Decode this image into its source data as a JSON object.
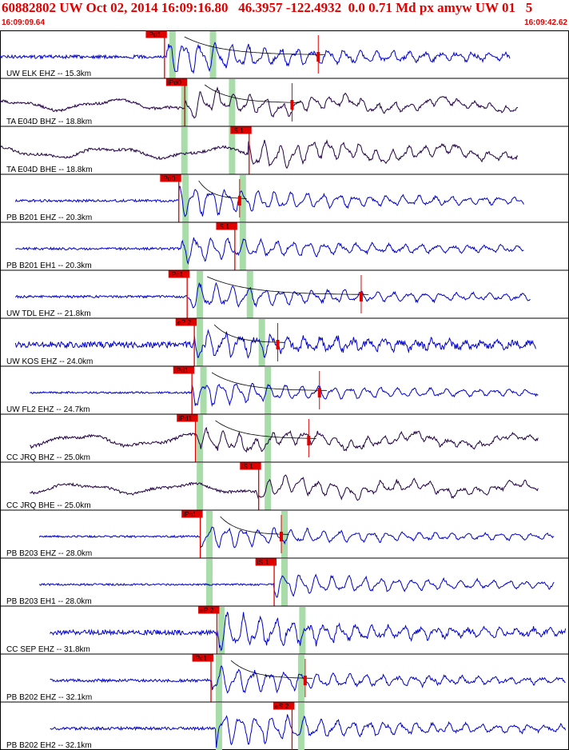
{
  "header": {
    "title": "60882802 UW Oct 02, 2014 16:09:16.80   46.3957 -122.4932  0.0 0.71 Md px amyw UW 01   5",
    "start_time": "16:09:09.64",
    "end_time": "16:09:42.62"
  },
  "colors": {
    "blue_trace": "#0000cc",
    "dark_trace": "#220044",
    "pick": "#e00000",
    "window": "#a8dca8",
    "coda": "#000000",
    "label": "#000000"
  },
  "chart_data": {
    "type": "line",
    "title": "60882802 UW Oct 02, 2014 16:09:16.80   46.3957 -122.4932  0.0 0.71 Md px amyw UW 01   5",
    "x_range": [
      "16:09:09.64",
      "16:09:42.62"
    ],
    "xlabel": "",
    "ylabel": "",
    "grid": false,
    "channels": [
      {
        "label": "UW ELK EHZ -- 15.3km",
        "pick": "iPd1",
        "pick_t": 13.8,
        "green": [
          14.2,
          17.6
        ],
        "coda_t": 26.7,
        "trace_start": 0.0,
        "trace_end": 42.8,
        "onset": 14.0,
        "peak_amp": 0.85,
        "bg_amp": 0.07,
        "color": "blue"
      },
      {
        "label": "TA E04D BHZ -- 18.8km",
        "pick": "iPd0",
        "pick_t": 15.5,
        "green": [
          15.2,
          19.2
        ],
        "coda_t": 24.5,
        "trace_start": 0.0,
        "trace_end": 43.5,
        "onset": 15.5,
        "peak_amp": 0.6,
        "bg_amp": 0.32,
        "color": "dark"
      },
      {
        "label": "TA E04D BHE -- 18.8km",
        "pick": "iS 1",
        "pick_t": 20.9,
        "green": [
          15.2,
          19.2
        ],
        "coda_t": 0,
        "trace_start": 0.0,
        "trace_end": 43.5,
        "onset": 20.8,
        "peak_amp": 0.65,
        "bg_amp": 0.32,
        "color": "dark"
      },
      {
        "label": "PB B201 EHZ -- 20.3km",
        "pick": "iPd0",
        "pick_t": 15.0,
        "green": [
          15.3,
          20.1
        ],
        "coda_t": 20.1,
        "trace_start": 1.3,
        "trace_end": 44.0,
        "onset": 15.0,
        "peak_amp": 0.75,
        "bg_amp": 0.05,
        "color": "blue"
      },
      {
        "label": "PB B201 EH1 -- 20.3km",
        "pick": "iS 1",
        "pick_t": 19.7,
        "green": [
          15.3,
          20.1
        ],
        "coda_t": 0,
        "trace_start": 1.3,
        "trace_end": 44.0,
        "onset": 15.2,
        "peak_amp": 0.6,
        "bg_amp": 0.05,
        "color": "blue"
      },
      {
        "label": "UW TDL EHZ -- 21.8km",
        "pick": "iPc1",
        "pick_t": 15.7,
        "green": [
          16.5,
          20.7
        ],
        "coda_t": 30.3,
        "trace_start": 1.3,
        "trace_end": 44.5,
        "onset": 15.6,
        "peak_amp": 0.6,
        "bg_amp": 0.05,
        "color": "blue"
      },
      {
        "label": "UW KOS EHZ -- 24.0km",
        "pick": "eP 2",
        "pick_t": 16.3,
        "green": [
          16.5,
          21.7
        ],
        "coda_t": 23.3,
        "trace_start": 1.3,
        "trace_end": 45.0,
        "onset": 16.3,
        "peak_amp": 0.65,
        "bg_amp": 0.13,
        "color": "blue"
      },
      {
        "label": "UW FL2 EHZ -- 24.7km",
        "pick": "iPd1",
        "pick_t": 16.1,
        "green": [
          16.8,
          22.2
        ],
        "coda_t": 26.8,
        "trace_start": 2.5,
        "trace_end": 45.2,
        "onset": 16.1,
        "peak_amp": 0.6,
        "bg_amp": 0.04,
        "color": "blue"
      },
      {
        "label": "CC JRQ BHZ -- 25.0km",
        "pick": "iPd1",
        "pick_t": 16.4,
        "green": [
          16.5,
          22.2
        ],
        "coda_t": 25.9,
        "trace_start": 2.5,
        "trace_end": 45.2,
        "onset": 16.4,
        "peak_amp": 0.45,
        "bg_amp": 0.35,
        "color": "dark"
      },
      {
        "label": "CC JRQ BHE -- 25.0km",
        "pick": "iS 1",
        "pick_t": 21.7,
        "green": [
          16.5,
          22.2
        ],
        "coda_t": 0,
        "trace_start": 2.5,
        "trace_end": 45.2,
        "onset": 21.6,
        "peak_amp": 0.45,
        "bg_amp": 0.3,
        "color": "dark"
      },
      {
        "label": "PB B203 EHZ -- 28.0km",
        "pick": "iPc1",
        "pick_t": 16.8,
        "green": [
          17.3,
          23.6
        ],
        "coda_t": 23.6,
        "trace_start": 3.3,
        "trace_end": 46.5,
        "onset": 16.8,
        "peak_amp": 0.5,
        "bg_amp": 0.04,
        "color": "blue"
      },
      {
        "label": "PB B203 EH1 -- 28.0km",
        "pick": "iS 1",
        "pick_t": 23.0,
        "green": [
          17.3,
          23.6
        ],
        "coda_t": 0,
        "trace_start": 3.3,
        "trace_end": 46.5,
        "onset": 23.0,
        "peak_amp": 0.5,
        "bg_amp": 0.04,
        "color": "blue"
      },
      {
        "label": "CC SEP EHZ -- 31.8km",
        "pick": "eP 2",
        "pick_t": 18.2,
        "green": [
          18.3,
          25.1
        ],
        "coda_t": 0,
        "trace_start": 4.2,
        "trace_end": 47.5,
        "onset": 18.3,
        "peak_amp": 0.85,
        "bg_amp": 0.1,
        "color": "blue"
      },
      {
        "label": "PB B202 EHZ -- 32.1km",
        "pick": "iPc1",
        "pick_t": 17.7,
        "green": [
          18.1,
          25.0
        ],
        "coda_t": 25.6,
        "trace_start": 4.2,
        "trace_end": 47.5,
        "onset": 17.8,
        "peak_amp": 0.65,
        "bg_amp": 0.06,
        "color": "blue"
      },
      {
        "label": "PB B202 EH2 -- 32.1km",
        "pick": "eS 2",
        "pick_t": 24.5,
        "green": [
          18.1,
          25.0
        ],
        "coda_t": 0,
        "trace_start": 4.2,
        "trace_end": 47.5,
        "onset": 18.1,
        "peak_amp": 0.8,
        "bg_amp": 0.06,
        "color": "blue"
      }
    ]
  }
}
